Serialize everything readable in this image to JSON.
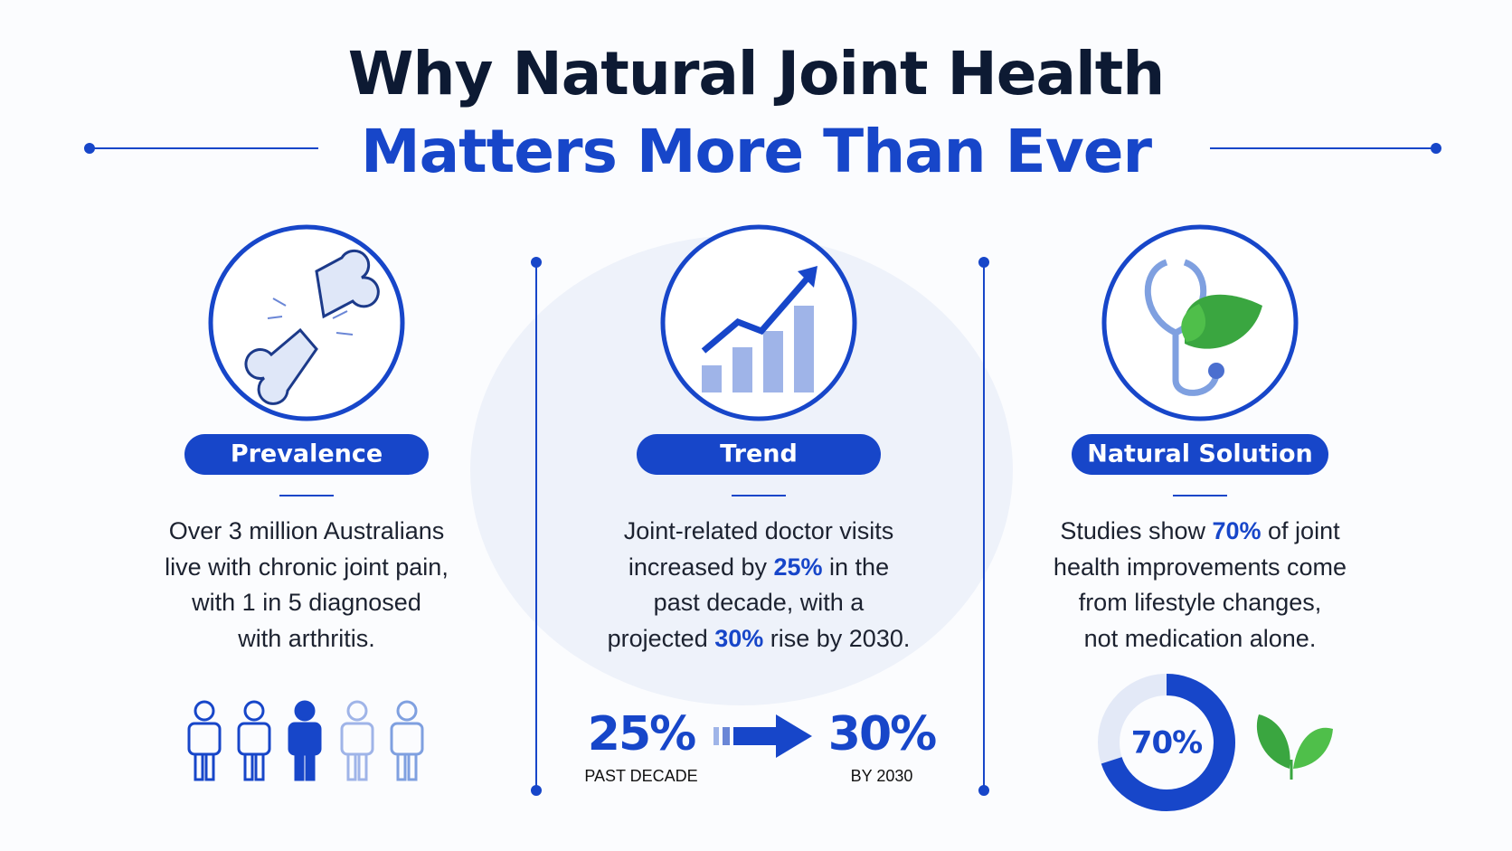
{
  "header": {
    "title_line1": "Why Natural Joint Health",
    "title_line2": "Matters More Than Ever"
  },
  "columns": [
    {
      "label": "Prevalence",
      "body": [
        [
          "Over 3 million Australians"
        ],
        [
          "live with chronic joint pain,"
        ],
        [
          "with 1 in 5 diagnosed"
        ],
        [
          "with arthritis."
        ]
      ]
    },
    {
      "label": "Trend",
      "body": [
        [
          "Joint-related doctor visits"
        ],
        [
          "increased by ",
          "25%",
          " in the"
        ],
        [
          "past decade, with a"
        ],
        [
          "projected ",
          "30%",
          " rise by 2030."
        ]
      ]
    },
    {
      "label": "Natural Solution",
      "body": [
        [
          "Studies show ",
          "70%",
          " of joint"
        ],
        [
          "health improvements come"
        ],
        [
          "from lifestyle changes,"
        ],
        [
          "not medication alone."
        ]
      ]
    }
  ],
  "trend_stats": {
    "from": {
      "value": "25%",
      "caption": "PAST DECADE"
    },
    "to": {
      "value": "30%",
      "caption": "BY 2030"
    }
  },
  "donut": {
    "value": 70,
    "label": "70%"
  }
}
